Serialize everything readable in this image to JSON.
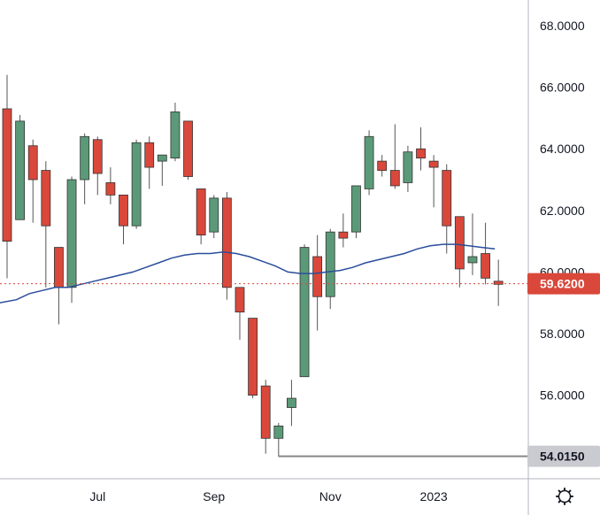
{
  "chart_data": {
    "type": "candlestick",
    "title": "",
    "ylim": [
      53.0,
      69.0
    ],
    "y_ticks": [
      "68.0000",
      "66.0000",
      "64.0000",
      "62.0000",
      "60.0000",
      "58.0000",
      "56.0000"
    ],
    "x_ticks": [
      "Jul",
      "Sep",
      "Nov",
      "2023"
    ],
    "colors": {
      "up": "#5b9a78",
      "down": "#d9483b",
      "wick": "#555555",
      "ma": "#2a4d9b",
      "last_price": "#d9483b",
      "low_marker": "#888888"
    },
    "candles": [
      {
        "o": 65.3,
        "h": 66.4,
        "l": 59.8,
        "c": 61.0
      },
      {
        "o": 61.7,
        "h": 65.1,
        "l": 61.7,
        "c": 64.9
      },
      {
        "o": 64.1,
        "h": 64.3,
        "l": 61.6,
        "c": 63.0
      },
      {
        "o": 63.3,
        "h": 63.6,
        "l": 59.5,
        "c": 61.5
      },
      {
        "o": 60.8,
        "h": 60.8,
        "l": 58.3,
        "c": 59.5
      },
      {
        "o": 59.5,
        "h": 63.1,
        "l": 59.0,
        "c": 63.0
      },
      {
        "o": 63.0,
        "h": 64.5,
        "l": 62.2,
        "c": 64.4
      },
      {
        "o": 64.3,
        "h": 64.4,
        "l": 62.5,
        "c": 63.2
      },
      {
        "o": 62.9,
        "h": 63.4,
        "l": 62.2,
        "c": 62.5
      },
      {
        "o": 62.5,
        "h": 62.5,
        "l": 60.9,
        "c": 61.5
      },
      {
        "o": 61.5,
        "h": 64.3,
        "l": 61.4,
        "c": 64.2
      },
      {
        "o": 64.2,
        "h": 64.4,
        "l": 62.7,
        "c": 63.4
      },
      {
        "o": 63.6,
        "h": 63.8,
        "l": 62.8,
        "c": 63.8
      },
      {
        "o": 63.7,
        "h": 65.5,
        "l": 63.6,
        "c": 65.2
      },
      {
        "o": 64.9,
        "h": 64.9,
        "l": 63.0,
        "c": 63.1
      },
      {
        "o": 62.7,
        "h": 62.7,
        "l": 60.9,
        "c": 61.2
      },
      {
        "o": 61.3,
        "h": 62.5,
        "l": 61.1,
        "c": 62.4
      },
      {
        "o": 62.4,
        "h": 62.6,
        "l": 59.1,
        "c": 59.5
      },
      {
        "o": 59.5,
        "h": 59.5,
        "l": 57.8,
        "c": 58.7
      },
      {
        "o": 58.5,
        "h": 58.5,
        "l": 55.9,
        "c": 56.0
      },
      {
        "o": 56.3,
        "h": 56.5,
        "l": 54.1,
        "c": 54.6
      },
      {
        "o": 54.6,
        "h": 55.1,
        "l": 54.0,
        "c": 55.0
      },
      {
        "o": 55.6,
        "h": 56.5,
        "l": 55.0,
        "c": 55.9
      },
      {
        "o": 56.6,
        "h": 60.9,
        "l": 56.6,
        "c": 60.8
      },
      {
        "o": 60.5,
        "h": 61.2,
        "l": 58.1,
        "c": 59.2
      },
      {
        "o": 59.2,
        "h": 61.4,
        "l": 58.8,
        "c": 61.3
      },
      {
        "o": 61.3,
        "h": 61.9,
        "l": 60.8,
        "c": 61.1
      },
      {
        "o": 61.3,
        "h": 62.8,
        "l": 61.1,
        "c": 62.8
      },
      {
        "o": 62.7,
        "h": 64.6,
        "l": 62.5,
        "c": 64.4
      },
      {
        "o": 63.6,
        "h": 63.8,
        "l": 63.1,
        "c": 63.3
      },
      {
        "o": 63.3,
        "h": 64.8,
        "l": 62.7,
        "c": 62.8
      },
      {
        "o": 62.9,
        "h": 64.1,
        "l": 62.6,
        "c": 63.9
      },
      {
        "o": 64.0,
        "h": 64.7,
        "l": 63.3,
        "c": 63.7
      },
      {
        "o": 63.6,
        "h": 63.8,
        "l": 62.1,
        "c": 63.4
      },
      {
        "o": 63.3,
        "h": 63.5,
        "l": 60.6,
        "c": 61.5
      },
      {
        "o": 61.8,
        "h": 61.8,
        "l": 59.5,
        "c": 60.1
      },
      {
        "o": 60.3,
        "h": 61.9,
        "l": 59.9,
        "c": 60.5
      },
      {
        "o": 60.6,
        "h": 61.6,
        "l": 59.6,
        "c": 59.8
      },
      {
        "o": 59.7,
        "h": 60.4,
        "l": 58.9,
        "c": 59.6
      }
    ],
    "moving_average": [
      59.0,
      59.1,
      59.3,
      59.4,
      59.5,
      59.5,
      59.6,
      59.7,
      59.8,
      59.9,
      60.0,
      60.15,
      60.3,
      60.45,
      60.55,
      60.6,
      60.6,
      60.65,
      60.6,
      60.5,
      60.35,
      60.2,
      60.0,
      59.95,
      59.95,
      60.0,
      60.05,
      60.15,
      60.3,
      60.4,
      60.5,
      60.6,
      60.75,
      60.85,
      60.9,
      60.9,
      60.85,
      60.8,
      60.75
    ],
    "last_price": {
      "value": 59.62,
      "label": "59.6200"
    },
    "low_marker": {
      "value": 54.015,
      "label": "54.0150"
    }
  },
  "toolbar": {
    "settings_icon": "gear-icon"
  }
}
